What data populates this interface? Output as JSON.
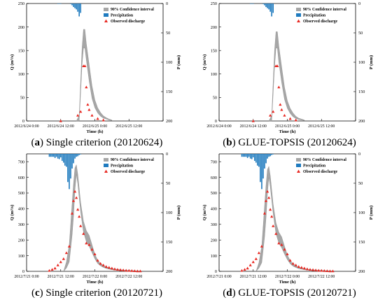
{
  "chart_data": [
    {
      "type": "line",
      "caption_letter": "a",
      "caption_text": "Single criterion (20120624)",
      "xlabel": "Time  (h)",
      "ylabel": "Q (m³/s)",
      "y2label": "P (mm)",
      "xticks": [
        "2012/6/24 0:00",
        "2012/6/24 12:00",
        "2012/6/25 0:00",
        "2012/6/25 12:00"
      ],
      "xlim": [
        0,
        48
      ],
      "ylim": [
        0,
        250
      ],
      "yticks": [
        0,
        50,
        100,
        150,
        200,
        250
      ],
      "y2lim": [
        0,
        200
      ],
      "y2ticks": [
        0,
        50,
        100,
        150,
        200
      ],
      "legend": {
        "position": "top-right",
        "entries": [
          "90% Confidence interval",
          "Precipitation",
          "Observed discharge"
        ]
      },
      "colors": {
        "band": "#a6a6a6",
        "precip": "#1f7bbf",
        "observed": "#e8261f"
      },
      "precipitation": {
        "x": [
          11,
          11.5,
          12,
          15.5,
          16,
          16.5,
          17,
          17.5,
          18,
          18.5,
          19
        ],
        "y": [
          0.6,
          0.6,
          0.6,
          1,
          3,
          6,
          8,
          10,
          14,
          22,
          16
        ]
      },
      "confidence_band": {
        "x": [
          17.5,
          18.5,
          19.5,
          20.0,
          20.5,
          21,
          22,
          23,
          24,
          25,
          26,
          27,
          28,
          29,
          30
        ],
        "lower": [
          0,
          0,
          120,
          155,
          155,
          130,
          85,
          48,
          28,
          17,
          10,
          6,
          4,
          2,
          1
        ],
        "upper": [
          0,
          12,
          155,
          195,
          195,
          165,
          120,
          75,
          45,
          28,
          18,
          11,
          7,
          4,
          2
        ]
      },
      "observed": {
        "x": [
          12,
          18,
          19,
          20,
          20.5,
          21,
          21.5,
          22,
          23,
          25,
          27
        ],
        "y": [
          0,
          12,
          20,
          117,
          117,
          72,
          35,
          24,
          12,
          5,
          2
        ]
      }
    },
    {
      "type": "line",
      "caption_letter": "b",
      "caption_text": "GLUE-TOPSIS (20120624)",
      "xlabel": "Time  (h)",
      "ylabel": "Q (m³/s)",
      "y2label": "P (mm)",
      "xticks": [
        "2012/6/24 0:00",
        "2012/6/24 12:00",
        "2012/6/25 0:00",
        "2012/6/25 12:00"
      ],
      "xlim": [
        0,
        48
      ],
      "ylim": [
        0,
        250
      ],
      "yticks": [
        0,
        50,
        100,
        150,
        200,
        250
      ],
      "y2lim": [
        0,
        200
      ],
      "y2ticks": [
        0,
        50,
        100,
        150,
        200
      ],
      "legend": {
        "position": "top-right",
        "entries": [
          "90% Confidence interval",
          "Precipitation",
          "Observed discharge"
        ]
      },
      "colors": {
        "band": "#a6a6a6",
        "precip": "#1f7bbf",
        "observed": "#e8261f"
      },
      "precipitation": {
        "x": [
          11,
          11.5,
          12,
          15.5,
          16,
          16.5,
          17,
          17.5,
          18,
          18.5,
          19
        ],
        "y": [
          0.6,
          0.6,
          0.6,
          1,
          3,
          6,
          8,
          10,
          14,
          22,
          16
        ]
      },
      "confidence_band": {
        "x": [
          17.5,
          18.5,
          19.5,
          20.0,
          20.5,
          21,
          22,
          23,
          24,
          25,
          26,
          27,
          28,
          29,
          30
        ],
        "lower": [
          0,
          0,
          115,
          155,
          155,
          125,
          82,
          46,
          27,
          16,
          9,
          5,
          3,
          2,
          1
        ],
        "upper": [
          0,
          12,
          150,
          190,
          190,
          160,
          115,
          72,
          43,
          27,
          17,
          10,
          6,
          4,
          2
        ]
      },
      "observed": {
        "x": [
          12,
          18,
          19,
          20,
          20.5,
          21,
          21.5,
          22,
          23,
          25,
          27
        ],
        "y": [
          0,
          12,
          20,
          117,
          117,
          72,
          35,
          24,
          12,
          5,
          2
        ]
      }
    },
    {
      "type": "line",
      "caption_letter": "c",
      "caption_text": "Single criterion (20120721)",
      "xlabel": "Time  (h)",
      "ylabel": "Q (m³/s)",
      "y2label": "P (mm)",
      "xticks": [
        "2012/7/21 0:00",
        "2012/7/21 12:00",
        "2012/7/22 0:00",
        "2012/7/22 12:00"
      ],
      "xlim": [
        0,
        48
      ],
      "ylim": [
        0,
        750
      ],
      "yticks": [
        0,
        100,
        200,
        300,
        400,
        500,
        600,
        700
      ],
      "y2lim": [
        0,
        200
      ],
      "y2ticks": [
        0,
        50,
        100,
        150,
        200
      ],
      "legend": {
        "position": "top-right",
        "entries": [
          "90% Confidence interval",
          "Precipitation",
          "Observed discharge"
        ]
      },
      "colors": {
        "band": "#a6a6a6",
        "precip": "#1f7bbf",
        "observed": "#e8261f"
      },
      "precipitation": {
        "x": [
          8,
          8.5,
          9,
          9.5,
          10,
          10.5,
          11,
          11.5,
          12,
          12.5,
          13,
          13.5,
          14,
          14.5,
          15,
          15.5,
          16,
          16.5,
          17,
          17.5,
          18,
          18.5,
          19
        ],
        "y": [
          5,
          5,
          5,
          5,
          7,
          5,
          8,
          9,
          6,
          12,
          15,
          20,
          22,
          48,
          60,
          42,
          25,
          16,
          8,
          5,
          4,
          2,
          1
        ]
      },
      "confidence_band": {
        "x": [
          13,
          14,
          15,
          16,
          16.5,
          17,
          17.5,
          18,
          19,
          20,
          21,
          22,
          23,
          24,
          25,
          26,
          27,
          28,
          30,
          32,
          34,
          36,
          38,
          40
        ],
        "lower": [
          0,
          20,
          60,
          230,
          350,
          520,
          620,
          560,
          380,
          250,
          190,
          160,
          120,
          80,
          50,
          35,
          25,
          18,
          10,
          6,
          4,
          3,
          2,
          1
        ],
        "upper": [
          0,
          60,
          170,
          430,
          560,
          660,
          680,
          620,
          440,
          320,
          260,
          230,
          170,
          110,
          70,
          50,
          38,
          28,
          18,
          12,
          8,
          6,
          4,
          3
        ]
      },
      "observed": {
        "x": [
          8,
          9,
          10,
          11,
          12,
          13,
          14,
          15,
          16,
          16.5,
          17,
          17.5,
          18,
          18.5,
          19,
          20,
          21,
          22,
          23,
          24,
          25,
          26,
          27,
          28,
          29,
          30,
          31,
          32,
          33,
          34,
          35,
          36,
          37,
          38,
          39,
          40
        ],
        "y": [
          5,
          12,
          20,
          40,
          60,
          80,
          118,
          160,
          370,
          450,
          510,
          470,
          395,
          350,
          290,
          240,
          180,
          170,
          140,
          110,
          70,
          50,
          40,
          30,
          25,
          20,
          15,
          12,
          10,
          8,
          6,
          5,
          4,
          3,
          2,
          2
        ]
      }
    },
    {
      "type": "line",
      "caption_letter": "d",
      "caption_text": "GLUE-TOPSIS (20120721)",
      "xlabel": "Time  (h)",
      "ylabel": "Q (m³/s)",
      "y2label": "P (mm)",
      "xticks": [
        "2012/7/21 0:00",
        "2012/7/21 12:00",
        "2012/7/22 0:00",
        "2012/7/22 12:00"
      ],
      "xlim": [
        0,
        48
      ],
      "ylim": [
        0,
        750
      ],
      "yticks": [
        0,
        100,
        200,
        300,
        400,
        500,
        600,
        700
      ],
      "y2lim": [
        0,
        200
      ],
      "y2ticks": [
        0,
        50,
        100,
        150,
        200
      ],
      "legend": {
        "position": "top-right",
        "entries": [
          "90% Confidence interval",
          "Precipitation",
          "Observed discharge"
        ]
      },
      "colors": {
        "band": "#a6a6a6",
        "precip": "#1f7bbf",
        "observed": "#e8261f"
      },
      "precipitation": {
        "x": [
          8,
          8.5,
          9,
          9.5,
          10,
          10.5,
          11,
          11.5,
          12,
          12.5,
          13,
          13.5,
          14,
          14.5,
          15,
          15.5,
          16,
          16.5,
          17,
          17.5,
          18,
          18.5,
          19
        ],
        "y": [
          5,
          5,
          5,
          5,
          7,
          5,
          8,
          9,
          6,
          12,
          15,
          20,
          22,
          48,
          60,
          42,
          25,
          16,
          8,
          5,
          4,
          2,
          1
        ]
      },
      "confidence_band": {
        "x": [
          13,
          14,
          15,
          16,
          16.5,
          17,
          17.5,
          18,
          19,
          20,
          21,
          22,
          23,
          24,
          25,
          26,
          27,
          28,
          30,
          32,
          34,
          36,
          38,
          40
        ],
        "lower": [
          0,
          20,
          55,
          220,
          340,
          500,
          600,
          540,
          370,
          240,
          180,
          150,
          110,
          75,
          48,
          33,
          24,
          17,
          10,
          6,
          4,
          3,
          2,
          1
        ],
        "upper": [
          0,
          55,
          160,
          420,
          550,
          650,
          670,
          610,
          430,
          310,
          250,
          220,
          160,
          105,
          68,
          48,
          36,
          27,
          17,
          11,
          8,
          6,
          4,
          3
        ]
      },
      "observed": {
        "x": [
          8,
          9,
          10,
          11,
          12,
          13,
          14,
          15,
          16,
          16.5,
          17,
          17.5,
          18,
          18.5,
          19,
          20,
          21,
          22,
          23,
          24,
          25,
          26,
          27,
          28,
          29,
          30,
          31,
          32,
          33,
          34,
          35,
          36,
          37,
          38,
          39,
          40
        ],
        "y": [
          5,
          12,
          20,
          40,
          60,
          80,
          118,
          160,
          370,
          450,
          510,
          470,
          395,
          350,
          290,
          240,
          180,
          170,
          140,
          110,
          70,
          50,
          40,
          30,
          25,
          20,
          15,
          12,
          10,
          8,
          6,
          5,
          4,
          3,
          2,
          2
        ]
      }
    }
  ]
}
